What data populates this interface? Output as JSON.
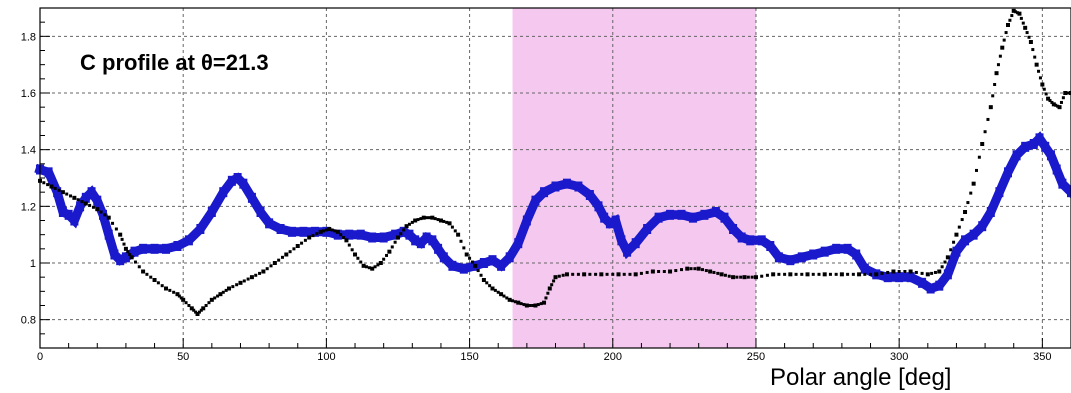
{
  "chart_data": {
    "type": "scatter",
    "title": "",
    "xlabel": "Polar angle [deg]",
    "ylabel": "",
    "xlim": [
      0,
      360
    ],
    "ylim": [
      0.7,
      1.9
    ],
    "grid": true,
    "x_ticks": [
      0,
      50,
      100,
      150,
      200,
      250,
      300,
      350
    ],
    "y_ticks": [
      0.8,
      1,
      1.2,
      1.4,
      1.6,
      1.8
    ],
    "annotation": "C profile at θ=21.3",
    "highlight_band": {
      "x_range": [
        165,
        250
      ],
      "color": "#f5c8f0"
    },
    "series": [
      {
        "color": "#1a1acc",
        "marker": "square-thick",
        "points": [
          [
            0,
            1.33
          ],
          [
            3,
            1.32
          ],
          [
            6,
            1.25
          ],
          [
            8,
            1.18
          ],
          [
            10,
            1.17
          ],
          [
            12,
            1.15
          ],
          [
            14,
            1.2
          ],
          [
            16,
            1.23
          ],
          [
            18,
            1.25
          ],
          [
            20,
            1.22
          ],
          [
            22,
            1.17
          ],
          [
            24,
            1.1
          ],
          [
            26,
            1.03
          ],
          [
            28,
            1.01
          ],
          [
            30,
            1.02
          ],
          [
            33,
            1.04
          ],
          [
            36,
            1.05
          ],
          [
            40,
            1.05
          ],
          [
            44,
            1.05
          ],
          [
            48,
            1.06
          ],
          [
            52,
            1.08
          ],
          [
            56,
            1.12
          ],
          [
            60,
            1.18
          ],
          [
            64,
            1.25
          ],
          [
            67,
            1.29
          ],
          [
            69,
            1.3
          ],
          [
            71,
            1.28
          ],
          [
            74,
            1.23
          ],
          [
            77,
            1.18
          ],
          [
            80,
            1.14
          ],
          [
            84,
            1.12
          ],
          [
            88,
            1.11
          ],
          [
            92,
            1.11
          ],
          [
            96,
            1.11
          ],
          [
            100,
            1.11
          ],
          [
            104,
            1.1
          ],
          [
            108,
            1.1
          ],
          [
            112,
            1.1
          ],
          [
            116,
            1.09
          ],
          [
            120,
            1.09
          ],
          [
            124,
            1.1
          ],
          [
            127,
            1.11
          ],
          [
            129,
            1.1
          ],
          [
            131,
            1.08
          ],
          [
            133,
            1.07
          ],
          [
            135,
            1.09
          ],
          [
            137,
            1.08
          ],
          [
            139,
            1.05
          ],
          [
            141,
            1.02
          ],
          [
            144,
            0.99
          ],
          [
            148,
            0.98
          ],
          [
            152,
            0.99
          ],
          [
            155,
            1.0
          ],
          [
            158,
            1.01
          ],
          [
            161,
            0.99
          ],
          [
            164,
            1.02
          ],
          [
            167,
            1.07
          ],
          [
            170,
            1.15
          ],
          [
            173,
            1.22
          ],
          [
            176,
            1.25
          ],
          [
            180,
            1.27
          ],
          [
            184,
            1.28
          ],
          [
            188,
            1.27
          ],
          [
            192,
            1.24
          ],
          [
            195,
            1.2
          ],
          [
            197,
            1.16
          ],
          [
            199,
            1.14
          ],
          [
            201,
            1.15
          ],
          [
            203,
            1.08
          ],
          [
            205,
            1.04
          ],
          [
            208,
            1.07
          ],
          [
            212,
            1.12
          ],
          [
            216,
            1.16
          ],
          [
            220,
            1.17
          ],
          [
            224,
            1.17
          ],
          [
            228,
            1.16
          ],
          [
            232,
            1.17
          ],
          [
            236,
            1.18
          ],
          [
            239,
            1.16
          ],
          [
            242,
            1.12
          ],
          [
            245,
            1.09
          ],
          [
            248,
            1.08
          ],
          [
            252,
            1.08
          ],
          [
            255,
            1.06
          ],
          [
            258,
            1.02
          ],
          [
            262,
            1.01
          ],
          [
            266,
            1.02
          ],
          [
            270,
            1.03
          ],
          [
            274,
            1.04
          ],
          [
            278,
            1.05
          ],
          [
            282,
            1.05
          ],
          [
            285,
            1.03
          ],
          [
            288,
            0.98
          ],
          [
            292,
            0.96
          ],
          [
            296,
            0.95
          ],
          [
            300,
            0.95
          ],
          [
            304,
            0.95
          ],
          [
            308,
            0.93
          ],
          [
            311,
            0.91
          ],
          [
            314,
            0.92
          ],
          [
            317,
            0.96
          ],
          [
            320,
            1.04
          ],
          [
            323,
            1.08
          ],
          [
            326,
            1.1
          ],
          [
            329,
            1.13
          ],
          [
            332,
            1.18
          ],
          [
            335,
            1.25
          ],
          [
            338,
            1.32
          ],
          [
            341,
            1.38
          ],
          [
            344,
            1.41
          ],
          [
            347,
            1.42
          ],
          [
            349,
            1.44
          ],
          [
            351,
            1.41
          ],
          [
            353,
            1.38
          ],
          [
            355,
            1.33
          ],
          [
            357,
            1.28
          ],
          [
            360,
            1.25
          ]
        ]
      },
      {
        "color": "#000000",
        "marker": "small-square",
        "points": [
          [
            0,
            1.29
          ],
          [
            4,
            1.27
          ],
          [
            8,
            1.25
          ],
          [
            12,
            1.23
          ],
          [
            16,
            1.21
          ],
          [
            20,
            1.19
          ],
          [
            24,
            1.16
          ],
          [
            28,
            1.1
          ],
          [
            30,
            1.05
          ],
          [
            32,
            1.02
          ],
          [
            36,
            0.97
          ],
          [
            40,
            0.94
          ],
          [
            44,
            0.91
          ],
          [
            48,
            0.89
          ],
          [
            50,
            0.87
          ],
          [
            53,
            0.84
          ],
          [
            55,
            0.82
          ],
          [
            57,
            0.84
          ],
          [
            60,
            0.87
          ],
          [
            63,
            0.89
          ],
          [
            66,
            0.91
          ],
          [
            70,
            0.93
          ],
          [
            74,
            0.95
          ],
          [
            78,
            0.97
          ],
          [
            82,
            1.0
          ],
          [
            86,
            1.03
          ],
          [
            90,
            1.06
          ],
          [
            94,
            1.09
          ],
          [
            98,
            1.11
          ],
          [
            101,
            1.12
          ],
          [
            104,
            1.11
          ],
          [
            107,
            1.08
          ],
          [
            110,
            1.03
          ],
          [
            113,
            0.99
          ],
          [
            116,
            0.98
          ],
          [
            119,
            1.0
          ],
          [
            122,
            1.04
          ],
          [
            125,
            1.09
          ],
          [
            128,
            1.13
          ],
          [
            131,
            1.15
          ],
          [
            134,
            1.16
          ],
          [
            137,
            1.16
          ],
          [
            140,
            1.15
          ],
          [
            143,
            1.14
          ],
          [
            146,
            1.1
          ],
          [
            149,
            1.03
          ],
          [
            152,
            0.99
          ],
          [
            155,
            0.94
          ],
          [
            158,
            0.91
          ],
          [
            161,
            0.89
          ],
          [
            164,
            0.87
          ],
          [
            167,
            0.86
          ],
          [
            170,
            0.85
          ],
          [
            173,
            0.85
          ],
          [
            176,
            0.86
          ],
          [
            178,
            0.91
          ],
          [
            180,
            0.95
          ],
          [
            184,
            0.96
          ],
          [
            190,
            0.96
          ],
          [
            196,
            0.96
          ],
          [
            202,
            0.96
          ],
          [
            208,
            0.96
          ],
          [
            214,
            0.97
          ],
          [
            220,
            0.97
          ],
          [
            226,
            0.98
          ],
          [
            230,
            0.98
          ],
          [
            234,
            0.97
          ],
          [
            238,
            0.96
          ],
          [
            242,
            0.95
          ],
          [
            246,
            0.95
          ],
          [
            250,
            0.95
          ],
          [
            256,
            0.96
          ],
          [
            262,
            0.96
          ],
          [
            268,
            0.96
          ],
          [
            274,
            0.96
          ],
          [
            280,
            0.96
          ],
          [
            286,
            0.96
          ],
          [
            292,
            0.96
          ],
          [
            298,
            0.97
          ],
          [
            304,
            0.97
          ],
          [
            310,
            0.96
          ],
          [
            314,
            0.97
          ],
          [
            317,
            1.02
          ],
          [
            320,
            1.1
          ],
          [
            323,
            1.18
          ],
          [
            326,
            1.28
          ],
          [
            329,
            1.42
          ],
          [
            332,
            1.55
          ],
          [
            334,
            1.67
          ],
          [
            336,
            1.76
          ],
          [
            338,
            1.84
          ],
          [
            340,
            1.89
          ],
          [
            342,
            1.88
          ],
          [
            344,
            1.83
          ],
          [
            346,
            1.78
          ],
          [
            348,
            1.7
          ],
          [
            350,
            1.63
          ],
          [
            352,
            1.58
          ],
          [
            354,
            1.56
          ],
          [
            356,
            1.55
          ],
          [
            358,
            1.6
          ],
          [
            360,
            1.6
          ]
        ]
      }
    ]
  }
}
